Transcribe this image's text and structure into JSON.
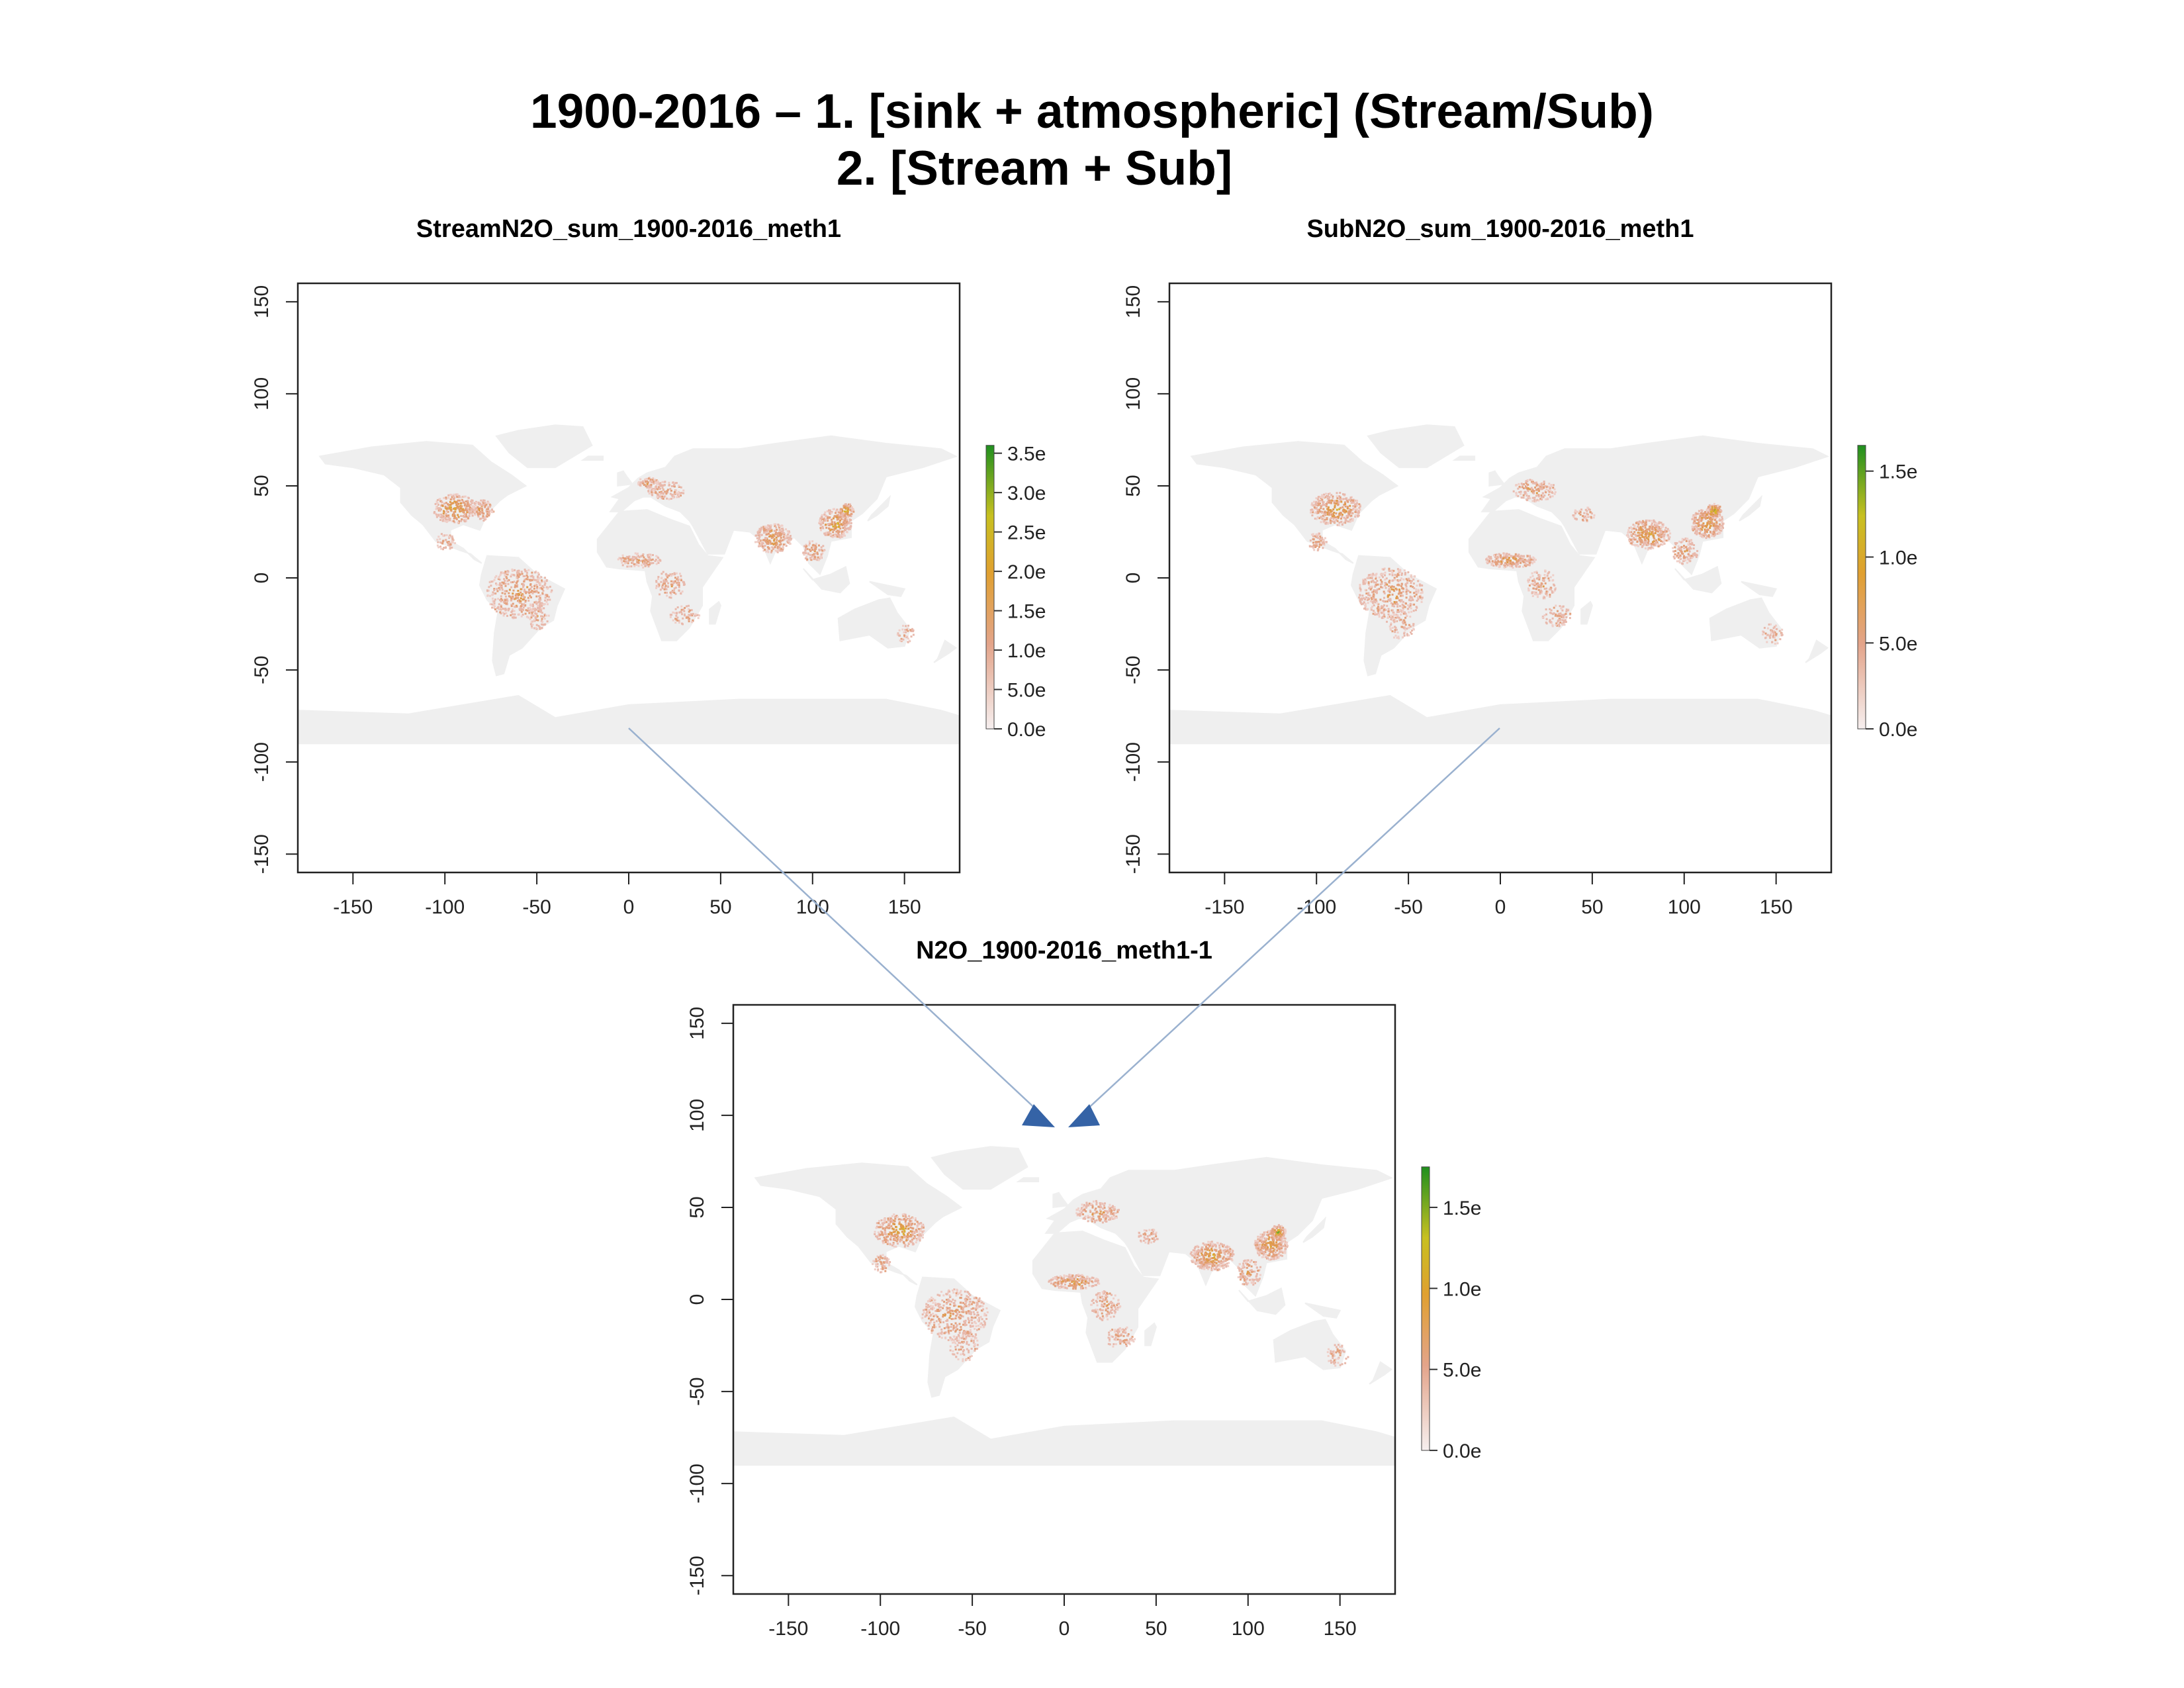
{
  "slide": {
    "title_line1": "1900-2016 – 1. [sink + atmospheric] (Stream/Sub)",
    "title_line2": "2. [Stream + Sub]"
  },
  "colors": {
    "land": "#efefef",
    "low": "#eccac2",
    "mid": "#e2a36e",
    "high": "#d9b830",
    "top": "#2a9a2a",
    "arrow_line": "#9ab1cf",
    "arrow_head": "#3563a6"
  },
  "lon_ticks": [
    "-150",
    "-100",
    "-50",
    "0",
    "50",
    "100",
    "150"
  ],
  "lat_ticks": [
    "150",
    "100",
    "50",
    "0",
    "-50",
    "-100",
    "-150"
  ],
  "maps": [
    {
      "id": "stream",
      "title": "StreamN2O_sum_1900-2016_meth1",
      "legend": [
        "3.5e",
        "3.0e",
        "2.5e",
        "2.0e",
        "1.5e",
        "1.0e",
        "5.0e",
        "0.0e"
      ],
      "legend_values": [
        3.5,
        3.0,
        2.5,
        2.0,
        1.5,
        1.0,
        0.5,
        0.0
      ],
      "legend_max": 3.6
    },
    {
      "id": "sub",
      "title": "SubN2O_sum_1900-2016_meth1",
      "legend": [
        "1.5e",
        "1.0e",
        "5.0e",
        "0.0e"
      ],
      "legend_values": [
        1.5,
        1.0,
        0.5,
        0.0
      ],
      "legend_max": 1.65
    },
    {
      "id": "total",
      "title": "N2O_1900-2016_meth1-1",
      "legend": [
        "1.5e",
        "1.0e",
        "5.0e",
        "0.0e"
      ],
      "legend_values": [
        1.5,
        1.0,
        0.5,
        0.0
      ],
      "legend_max": 1.75
    }
  ]
}
